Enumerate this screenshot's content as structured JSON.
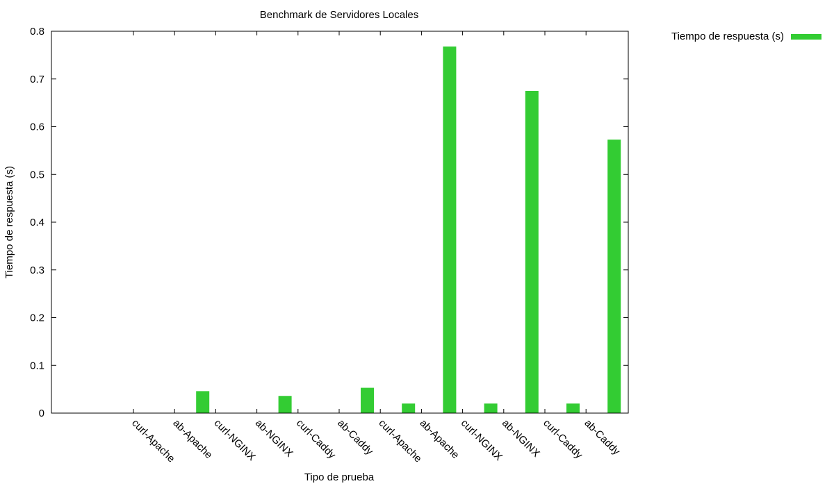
{
  "chart_data": {
    "type": "bar",
    "title": "Benchmark de Servidores Locales",
    "xlabel": "Tipo de prueba",
    "ylabel": "Tiempo de respuesta (s)",
    "ylim": [
      0,
      0.8
    ],
    "yticks": [
      "0",
      "0.1",
      "0.2",
      "0.3",
      "0.4",
      "0.5",
      "0.6",
      "0.7",
      "0.8"
    ],
    "categories": [
      "curl-Apache",
      "ab-Apache",
      "curl-NGINX",
      "ab-NGINX",
      "curl-Caddy",
      "ab-Caddy",
      "curl-Apache",
      "ab-Apache",
      "curl-NGINX",
      "ab-NGINX",
      "curl-Caddy",
      "ab-Caddy"
    ],
    "series": [
      {
        "name": "Tiempo de respuesta (s)",
        "values": [
          0.0,
          0.046,
          0.0,
          0.036,
          0.0,
          0.053,
          0.02,
          0.768,
          0.02,
          0.675,
          0.02,
          0.573
        ],
        "color": "#33cc33"
      }
    ],
    "grid": false,
    "legend_position": "outside-top-right"
  }
}
